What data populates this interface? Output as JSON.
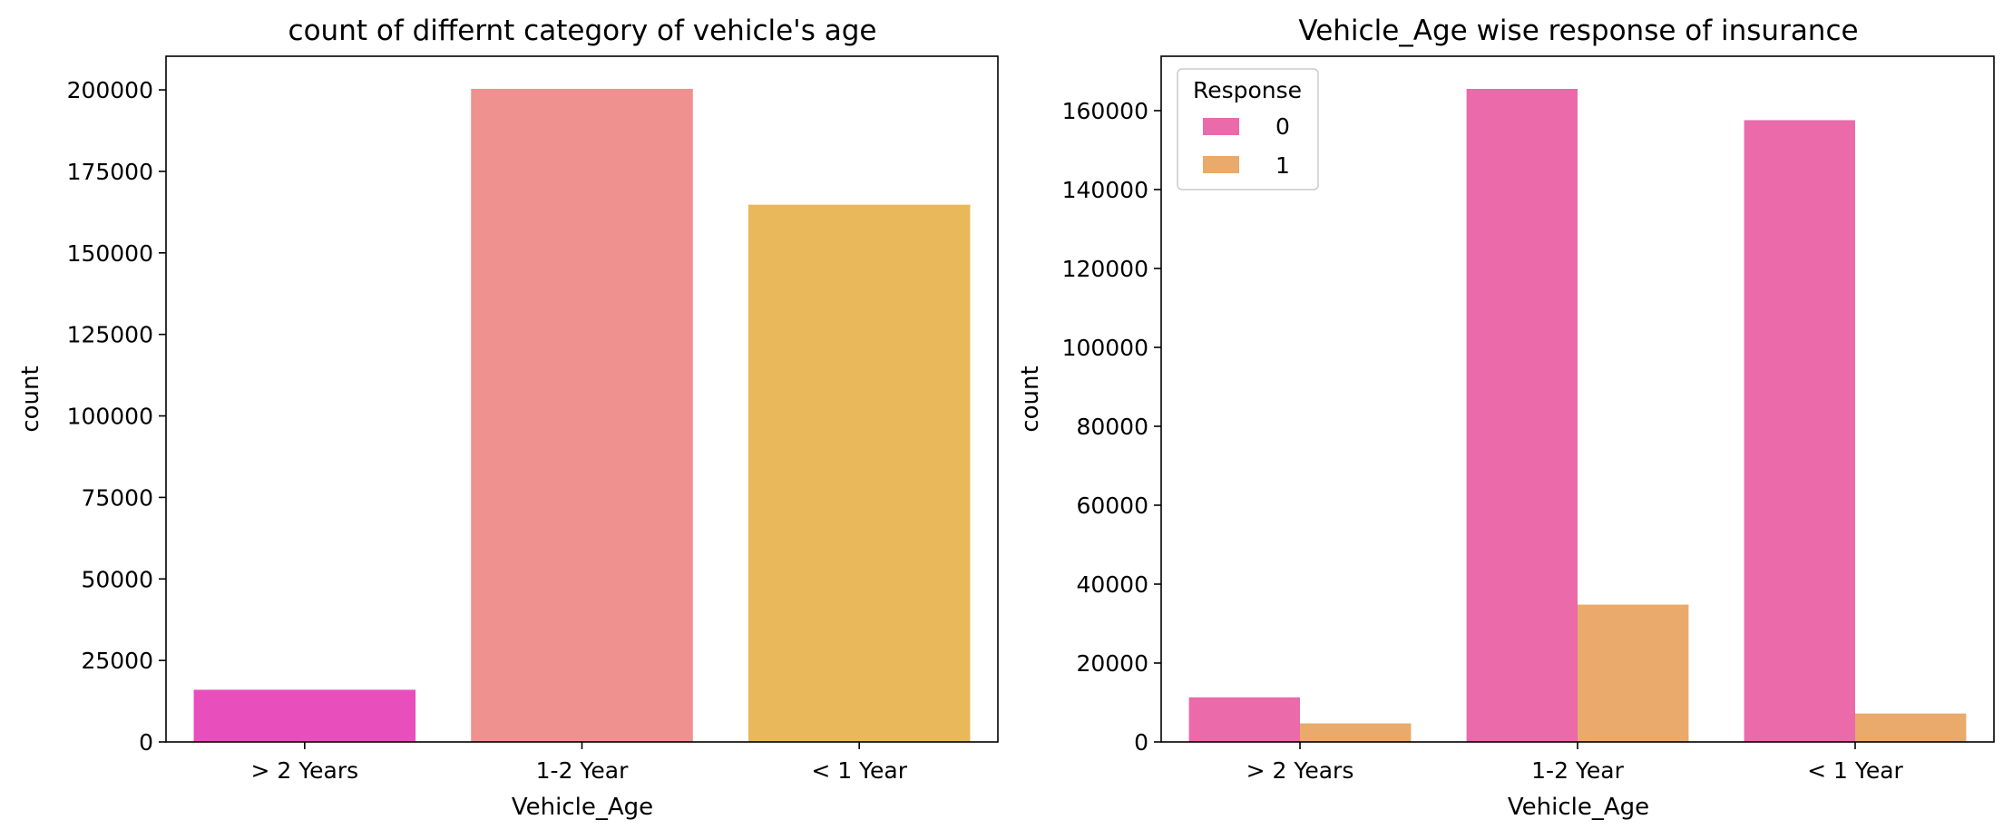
{
  "chart_data": [
    {
      "type": "bar",
      "title": "count of differnt category of vehicle's age",
      "xlabel": "Vehicle_Age",
      "ylabel": "count",
      "categories": [
        "> 2 Years",
        "1-2 Year",
        "< 1 Year"
      ],
      "values": [
        16007,
        200316,
        164786
      ],
      "bar_colors": [
        "#e84fbc",
        "#ef918e",
        "#e8b85a"
      ],
      "ylim": [
        0,
        210316
      ],
      "yticks": [
        0,
        25000,
        50000,
        75000,
        100000,
        125000,
        150000,
        175000,
        200000
      ],
      "grid": false
    },
    {
      "type": "bar",
      "title": "Vehicle_Age wise response of insurance",
      "xlabel": "Vehicle_Age",
      "ylabel": "count",
      "categories": [
        "> 2 Years",
        "1-2 Year",
        "< 1 Year"
      ],
      "series": [
        {
          "name": "0",
          "values": [
            11305,
            165510,
            157584
          ],
          "color": "#ea6aaa"
        },
        {
          "name": "1",
          "values": [
            4702,
            34806,
            7202
          ],
          "color": "#e9aa6b"
        }
      ],
      "legend": {
        "title": "Response",
        "placement": "top-left"
      },
      "ylim": [
        0,
        173786
      ],
      "yticks": [
        0,
        20000,
        40000,
        60000,
        80000,
        100000,
        120000,
        140000,
        160000
      ],
      "grid": false
    }
  ]
}
